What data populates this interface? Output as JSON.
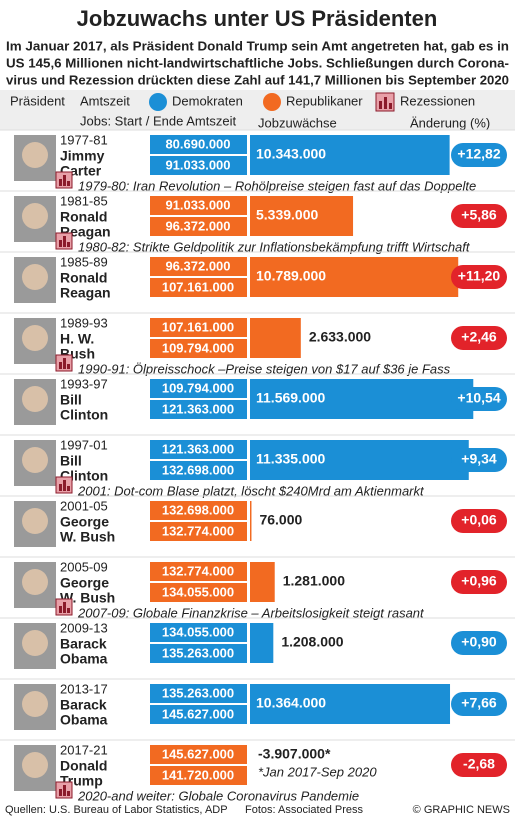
{
  "header": {
    "title": "Jobzuwachs unter US Präsidenten",
    "subtitle": [
      "Im Januar 2017, als Präsident Donald Trump sein Amt angetreten hat, gab es in",
      "US 145,6 Millionen nicht-landwirtschaftliche Jobs. Schließungen durch Corona-",
      "virus und Rezession drückten diese Zahl auf 141,7 Millionen bis September 2020"
    ]
  },
  "legend": {
    "president": "Präsident",
    "term": "Amtszeit",
    "dem": "Demokraten",
    "dem_color": "#1b8fd6",
    "rep": "Republikaner",
    "rep_color": "#f26a21",
    "recession": "Rezessionen"
  },
  "columns": {
    "jobs": "Jobs: Start / Ende Amtszeit",
    "gain": "Jobzuwächse",
    "change": "Änderung (%)"
  },
  "rows": [
    {
      "term": "1977-81",
      "name": [
        "Jimmy",
        "Carter"
      ],
      "start": "80.690.000",
      "end": "91.033.000",
      "gain": {
        "value": 10343000,
        "label": "10.343.000"
      },
      "change": "+12,82",
      "color": "#1b8fd6",
      "badge_color": "#1b8fd6",
      "note": "1979-80: Iran Revolution – Rohölpreise steigen fast auf das Doppelte"
    },
    {
      "term": "1981-85",
      "name": [
        "Ronald",
        "Reagan"
      ],
      "start": "91.033.000",
      "end": "96.372.000",
      "gain": {
        "value": 5339000,
        "label": "5.339.000"
      },
      "change": "+5,86",
      "color": "#f26a21",
      "badge_color": "#e2232a",
      "note": "1980-82: Strikte Geldpolitik zur Inflationsbekämpfung trifft Wirtschaft"
    },
    {
      "term": "1985-89",
      "name": [
        "Ronald",
        "Reagan"
      ],
      "start": "96.372.000",
      "end": "107.161.000",
      "gain": {
        "value": 10789000,
        "label": "10.789.000"
      },
      "change": "+11,20",
      "color": "#f26a21",
      "badge_color": "#e2232a"
    },
    {
      "term": "1989-93",
      "name": [
        "H. W.",
        "Bush"
      ],
      "start": "107.161.000",
      "end": "109.794.000",
      "gain": {
        "value": 2633000,
        "label": "2.633.000"
      },
      "change": "+2,46",
      "color": "#f26a21",
      "badge_color": "#e2232a",
      "note": "1990-91: Ölpreisschock –Preise steigen von $17 auf $36 je Fass"
    },
    {
      "term": "1993-97",
      "name": [
        "Bill",
        "Clinton"
      ],
      "start": "109.794.000",
      "end": "121.363.000",
      "gain": {
        "value": 11569000,
        "label": "11.569.000"
      },
      "change": "+10,54",
      "color": "#1b8fd6",
      "badge_color": "#1b8fd6"
    },
    {
      "term": "1997-01",
      "name": [
        "Bill",
        "Clinton"
      ],
      "start": "121.363.000",
      "end": "132.698.000",
      "gain": {
        "value": 11335000,
        "label": "11.335.000"
      },
      "change": "+9,34",
      "color": "#1b8fd6",
      "badge_color": "#1b8fd6",
      "note": "2001: Dot-com Blase platzt, löscht $240Mrd am Aktienmarkt"
    },
    {
      "term": "2001-05",
      "name": [
        "George",
        "W. Bush"
      ],
      "start": "132.698.000",
      "end": "132.774.000",
      "gain": {
        "value": 76000,
        "label": "76.000"
      },
      "change": "+0,06",
      "color": "#f26a21",
      "badge_color": "#e2232a"
    },
    {
      "term": "2005-09",
      "name": [
        "George",
        "W. Bush"
      ],
      "start": "132.774.000",
      "end": "134.055.000",
      "gain": {
        "value": 1281000,
        "label": "1.281.000"
      },
      "change": "+0,96",
      "color": "#f26a21",
      "badge_color": "#e2232a",
      "note": "2007-09: Globale Finanzkrise – Arbeitslosigkeit steigt rasant"
    },
    {
      "term": "2009-13",
      "name": [
        "Barack",
        "Obama"
      ],
      "start": "134.055.000",
      "end": "135.263.000",
      "gain": {
        "value": 1208000,
        "label": "1.208.000"
      },
      "change": "+0,90",
      "color": "#1b8fd6",
      "badge_color": "#1b8fd6"
    },
    {
      "term": "2013-17",
      "name": [
        "Barack",
        "Obama"
      ],
      "start": "135.263.000",
      "end": "145.627.000",
      "gain": {
        "value": 10364000,
        "label": "10.364.000"
      },
      "change": "+7,66",
      "color": "#1b8fd6",
      "badge_color": "#1b8fd6"
    },
    {
      "term": "2017-21",
      "name": [
        "Donald",
        "Trump"
      ],
      "start": "145.627.000",
      "end": "141.720.000",
      "gain": {
        "value": -3907000,
        "label": "-3.907.000*"
      },
      "gain_note": "*Jan 2017-Sep 2020",
      "change": "-2,68",
      "color": "#f26a21",
      "badge_color": "#e2232a",
      "note": "2020-and weiter: Globale Coronavirus Pandemie"
    }
  ],
  "footer": {
    "sources": "Quellen: U.S. Bureau of Labor Statistics, ADP",
    "photos": "Fotos: Associated Press",
    "credit": "© GRAPHIC NEWS"
  }
}
